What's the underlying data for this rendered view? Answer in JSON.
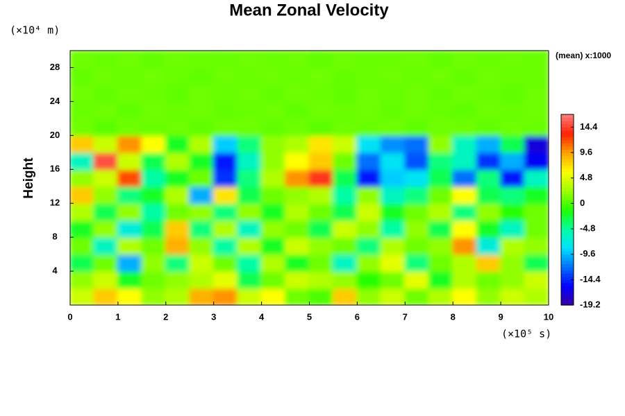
{
  "chart_data": {
    "type": "heatmap",
    "title": "Mean Zonal Velocity",
    "ylabel": "Height",
    "y_unit": "(×10⁴ m)",
    "x_unit": "(×10⁵ s)",
    "annotation": "(mean) x:1000",
    "xlim": [
      0,
      10
    ],
    "xticks": [
      0,
      1,
      2,
      3,
      4,
      5,
      6,
      7,
      8,
      9,
      10
    ],
    "ylim": [
      0,
      30
    ],
    "yticks": [
      4,
      8,
      12,
      16,
      20,
      24,
      28
    ],
    "colorbar_lim": [
      -19.2,
      16.8
    ],
    "colorbar_ticks": [
      14.4,
      9.6,
      4.8,
      0,
      -4.8,
      -9.6,
      -14.4,
      -19.2
    ],
    "colormap": [
      "#3a00a0",
      "#0000ff",
      "#0070ff",
      "#00e0ff",
      "#00ffa0",
      "#20ff00",
      "#a0ff00",
      "#ffff00",
      "#ffa000",
      "#ff2000",
      "#ff8080"
    ],
    "z": [
      [
        4,
        8,
        6,
        2,
        3,
        9,
        10,
        4,
        6,
        1,
        0,
        8,
        2,
        4,
        1,
        3,
        6,
        2,
        4,
        3
      ],
      [
        2,
        4,
        -2,
        1,
        2,
        3,
        5,
        -3,
        1,
        4,
        3,
        2,
        -1,
        1,
        5,
        -2,
        3,
        1,
        2,
        4
      ],
      [
        -3,
        1,
        -10,
        2,
        -4,
        4,
        1,
        -5,
        3,
        -2,
        1,
        -6,
        2,
        5,
        -4,
        1,
        3,
        8,
        2,
        -3
      ],
      [
        1,
        -6,
        3,
        1,
        9,
        2,
        -5,
        3,
        -2,
        4,
        2,
        1,
        -4,
        3,
        1,
        2,
        10,
        -7,
        3,
        2
      ],
      [
        -2,
        2,
        -7,
        -3,
        8,
        -4,
        3,
        -6,
        2,
        1,
        -3,
        4,
        2,
        -5,
        2,
        -3,
        6,
        -2,
        -6,
        1
      ],
      [
        3,
        -3,
        2,
        -5,
        1,
        2,
        -4,
        2,
        -2,
        3,
        1,
        -3,
        4,
        -2,
        1,
        3,
        -4,
        2,
        -1,
        1
      ],
      [
        8,
        2,
        -4,
        -2,
        3,
        -10,
        7,
        -3,
        1,
        2,
        3,
        -5,
        2,
        -6,
        -4,
        1,
        6,
        -3,
        -4,
        -2
      ],
      [
        2,
        4,
        12,
        -5,
        -2,
        1,
        -14,
        -4,
        3,
        10,
        14,
        -3,
        -15,
        -9,
        -8,
        -3,
        -12,
        -4,
        -15,
        -6
      ],
      [
        -6,
        15,
        4,
        -3,
        3,
        -2,
        -15,
        -6,
        2,
        6,
        8,
        1,
        -12,
        -8,
        -13,
        -4,
        -6,
        -14,
        -10,
        -16
      ],
      [
        8,
        4,
        10,
        6,
        -2,
        3,
        -9,
        -4,
        2,
        3,
        7,
        4,
        -8,
        -11,
        -12,
        2,
        -6,
        -10,
        -3,
        -17
      ],
      [
        1,
        0.5,
        1,
        0.8,
        1,
        0.6,
        1,
        1,
        0.7,
        1,
        0.5,
        1,
        0.8,
        1,
        0.6,
        1,
        1,
        0.7,
        1,
        0.8
      ],
      [
        0.8,
        1,
        0.6,
        1,
        0.9,
        1,
        0.7,
        0.8,
        1,
        0.6,
        1,
        0.9,
        1,
        0.7,
        1,
        0.8,
        0.6,
        1,
        0.9,
        1
      ],
      [
        1,
        0.7,
        1,
        0.9,
        0.6,
        1,
        0.8,
        1,
        0.7,
        1,
        0.9,
        0.6,
        1,
        0.8,
        1,
        0.7,
        1,
        0.9,
        0.6,
        1
      ],
      [
        0.7,
        1,
        0.9,
        1,
        0.8,
        0.6,
        1,
        0.9,
        1,
        0.8,
        1,
        0.7,
        0.9,
        1,
        0.8,
        1,
        0.7,
        1,
        0.8,
        0.9
      ],
      [
        1,
        0.8,
        1,
        0.7,
        1,
        0.9,
        0.8,
        1,
        0.9,
        1,
        0.7,
        1,
        0.8,
        0.9,
        1,
        0.7,
        1,
        0.8,
        1,
        0.9
      ]
    ]
  }
}
